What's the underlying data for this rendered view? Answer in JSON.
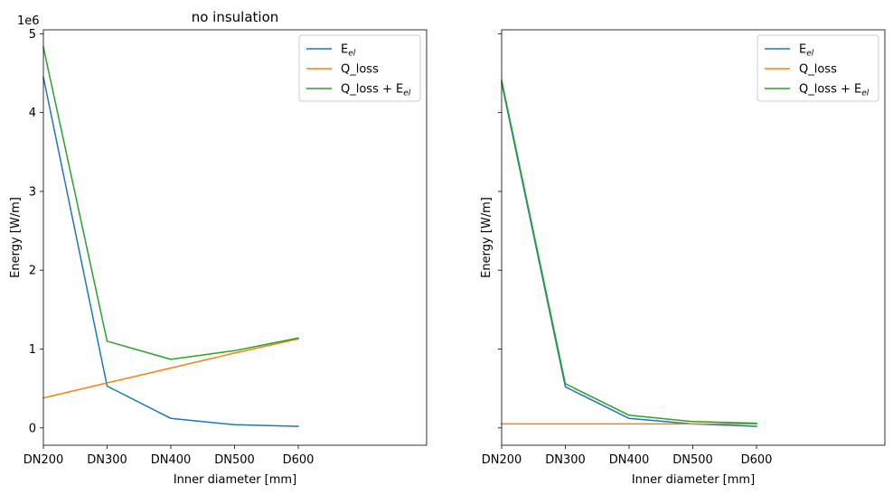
{
  "chart_data": [
    {
      "type": "line",
      "title": "no insulation",
      "xlabel": "Inner diameter [mm]",
      "ylabel": "Energy [W/m]",
      "scale_label": "1e6",
      "categories": [
        "DN200",
        "DN300",
        "DN400",
        "DN500",
        "D600"
      ],
      "ylim": [
        -0.22,
        5.05
      ],
      "yticks": [
        0,
        1,
        2,
        3,
        4,
        5
      ],
      "yticks_labeled": true,
      "grid": false,
      "legend": "top-right",
      "series": [
        {
          "name": "E",
          "sub": "el",
          "color": "#1f77b4",
          "values": [
            4.45,
            0.53,
            0.12,
            0.04,
            0.02
          ]
        },
        {
          "name": "Q_loss",
          "sub": "",
          "color": "#ff7f0e",
          "values": [
            0.38,
            0.57,
            0.76,
            0.95,
            1.13
          ]
        },
        {
          "name": "Q_loss + E",
          "sub": "el",
          "color": "#2ca02c",
          "values": [
            4.83,
            1.1,
            0.87,
            0.98,
            1.14
          ]
        }
      ]
    },
    {
      "type": "line",
      "title": "",
      "xlabel": "Inner diameter [mm]",
      "ylabel": "Energy [W/m]",
      "categories": [
        "DN200",
        "DN300",
        "DN400",
        "DN500",
        "D600"
      ],
      "ylim": [
        -0.22,
        5.05
      ],
      "yticks": [
        0,
        1,
        2,
        3,
        4,
        5
      ],
      "yticks_labeled": false,
      "grid": false,
      "legend": "top-right",
      "series": [
        {
          "name": "E",
          "sub": "el",
          "color": "#1f77b4",
          "values": [
            4.38,
            0.52,
            0.12,
            0.05,
            0.02
          ]
        },
        {
          "name": "Q_loss",
          "sub": "",
          "color": "#ff7f0e",
          "values": [
            0.05,
            0.05,
            0.05,
            0.05,
            0.05
          ]
        },
        {
          "name": "Q_loss + E",
          "sub": "el",
          "color": "#2ca02c",
          "values": [
            4.41,
            0.56,
            0.16,
            0.08,
            0.06
          ]
        }
      ]
    }
  ]
}
